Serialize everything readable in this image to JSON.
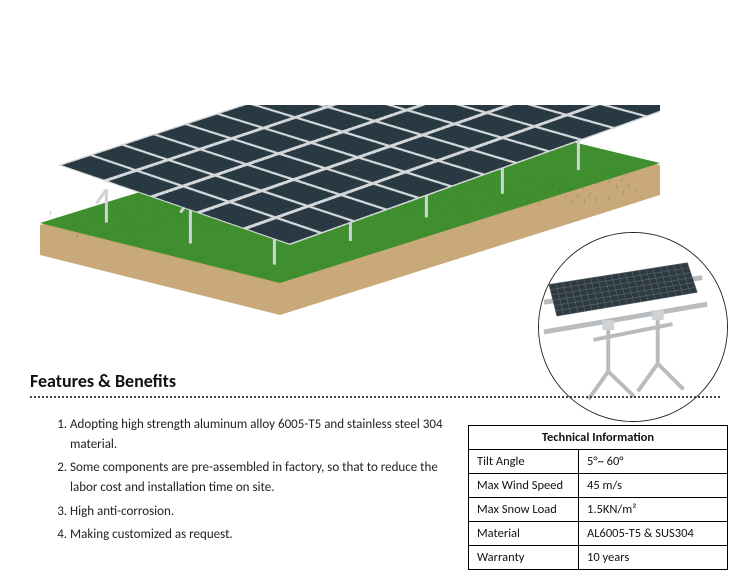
{
  "section_title": "Features & Benefits",
  "features": [
    "Adopting high strength aluminum alloy 6005-T5 and stainless steel 304 material.",
    "Some components are pre-assembled in factory, so that to reduce the labor cost and installation time on site.",
    "High anti-corrosion.",
    "Making customized as request."
  ],
  "tech_table": {
    "header": "Technical Information",
    "rows": [
      {
        "label": "Tilt Angle",
        "value": "5°~ 60°"
      },
      {
        "label": "Max Wind Speed",
        "value": "45 m/s"
      },
      {
        "label": "Max Snow Load",
        "value": "1.5KN/m²"
      },
      {
        "label": "Material",
        "value": "AL6005-T5 & SUS304"
      },
      {
        "label": "Warranty",
        "value": "10 years"
      }
    ]
  },
  "hero": {
    "ground_fill": "#3f8f2f",
    "ground_edge": "#c9a97a",
    "panel_frame": "#d5d8da",
    "panel_cell": "#2b3b45",
    "panel_cell_dark": "#1f2c34",
    "post_color": "#cfd3d6",
    "panel_rows": 5,
    "panel_cols": 12,
    "tilt_deg": 18
  },
  "inset": {
    "frame_color": "#c9ccce",
    "mesh_color": "#2e3a40",
    "bg": "#ffffff"
  },
  "colors": {
    "text": "#1a1a1a",
    "title": "#111111",
    "dot_border": "#444444",
    "table_border": "#000000",
    "page_bg": "#ffffff"
  }
}
